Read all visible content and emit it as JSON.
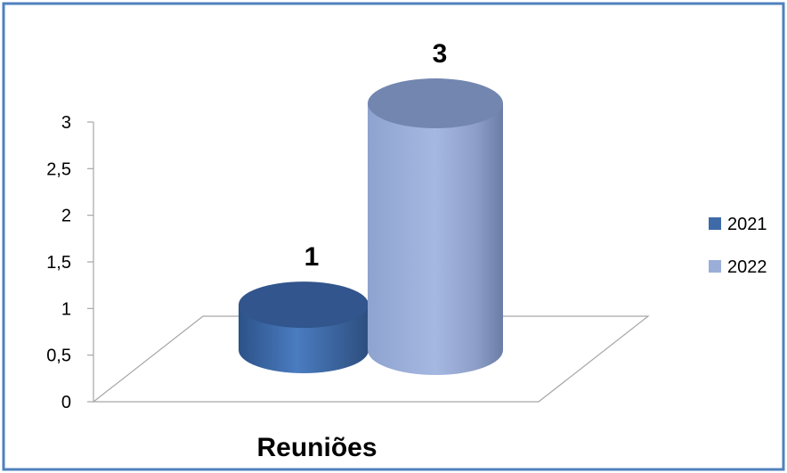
{
  "chart_data": {
    "type": "bar",
    "style": "3d-cylinder",
    "categories": [
      "Reuniões"
    ],
    "series": [
      {
        "name": "2021",
        "values": [
          1
        ],
        "color": "#3E6AA8"
      },
      {
        "name": "2022",
        "values": [
          3
        ],
        "color": "#9AAED8"
      }
    ],
    "data_labels": [
      "1",
      "3"
    ],
    "y_ticks": [
      "0",
      "0,5",
      "1",
      "1,5",
      "2",
      "2,5",
      "3"
    ],
    "ylim": [
      0,
      3
    ],
    "legend": {
      "position": "right",
      "items": [
        "2021",
        "2022"
      ]
    },
    "grid": false,
    "border_color": "#4F81BD"
  }
}
